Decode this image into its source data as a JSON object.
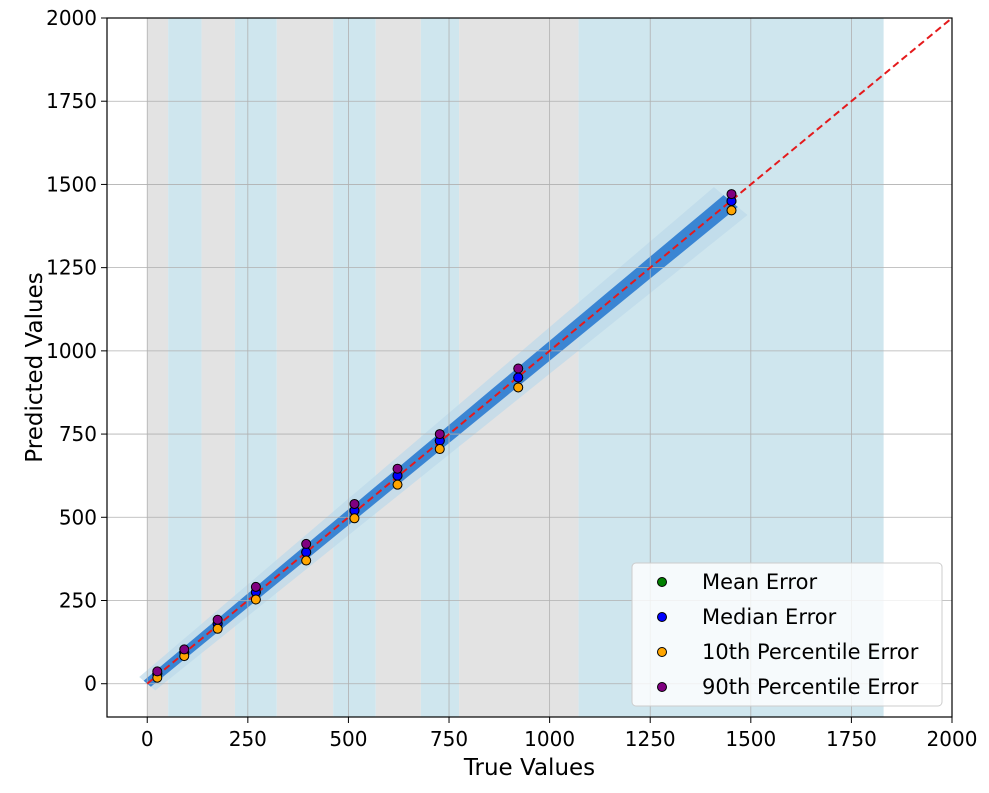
{
  "chart_data": {
    "type": "scatter",
    "title": "",
    "xlabel": "True Values",
    "ylabel": "Predicted Values",
    "xlim": [
      -100,
      2000
    ],
    "ylim": [
      -100,
      2000
    ],
    "xticks": [
      0,
      250,
      500,
      750,
      1000,
      1250,
      1500,
      1750,
      2000
    ],
    "yticks": [
      0,
      250,
      500,
      750,
      1000,
      1250,
      1500,
      1750,
      2000
    ],
    "xtick_labels": [
      "0",
      "250",
      "500",
      "750",
      "1000",
      "1250",
      "1500",
      "1750",
      "2000"
    ],
    "ytick_labels": [
      "0",
      "250",
      "500",
      "750",
      "1000",
      "1250",
      "1500",
      "1750",
      "2000"
    ],
    "grid": true,
    "legend_position": "lower-right",
    "identity_line": {
      "from": [
        0,
        0
      ],
      "to": [
        2000,
        2000
      ],
      "color": "#e41a1c",
      "style": "dashed"
    },
    "background_bands": [
      {
        "x0": 0,
        "x1": 52,
        "color": "#e3e3e3"
      },
      {
        "x0": 52,
        "x1": 135,
        "color": "#cfe6ee"
      },
      {
        "x0": 135,
        "x1": 218,
        "color": "#e3e3e3"
      },
      {
        "x0": 218,
        "x1": 322,
        "color": "#cfe6ee"
      },
      {
        "x0": 322,
        "x1": 462,
        "color": "#e3e3e3"
      },
      {
        "x0": 462,
        "x1": 568,
        "color": "#cfe6ee"
      },
      {
        "x0": 568,
        "x1": 680,
        "color": "#e3e3e3"
      },
      {
        "x0": 680,
        "x1": 775,
        "color": "#cfe6ee"
      },
      {
        "x0": 775,
        "x1": 1072,
        "color": "#e3e3e3"
      },
      {
        "x0": 1072,
        "x1": 1830,
        "color": "#cfe6ee"
      }
    ],
    "density_band": {
      "x_start": 0,
      "x_end": 1450,
      "color": "#2b7bd0"
    },
    "series": [
      {
        "name": "Mean Error",
        "color": "#008000",
        "x": [
          25,
          92,
          175,
          270,
          395,
          515,
          622,
          727,
          922,
          1452
        ],
        "y": [
          30,
          95,
          180,
          275,
          395,
          520,
          625,
          730,
          920,
          1450
        ]
      },
      {
        "name": "Median Error",
        "color": "#0000ff",
        "x": [
          25,
          92,
          175,
          270,
          395,
          515,
          622,
          727,
          922,
          1452
        ],
        "y": [
          30,
          95,
          180,
          275,
          395,
          520,
          625,
          730,
          920,
          1450
        ]
      },
      {
        "name": "10th Percentile Error",
        "color": "#ffa500",
        "x": [
          25,
          92,
          175,
          270,
          395,
          515,
          622,
          727,
          922,
          1452
        ],
        "y": [
          18,
          83,
          165,
          253,
          370,
          497,
          598,
          705,
          890,
          1422
        ]
      },
      {
        "name": "90th Percentile Error",
        "color": "#800080",
        "x": [
          25,
          92,
          175,
          270,
          395,
          515,
          622,
          727,
          922,
          1452
        ],
        "y": [
          37,
          103,
          192,
          291,
          420,
          540,
          646,
          750,
          947,
          1471
        ]
      }
    ]
  }
}
